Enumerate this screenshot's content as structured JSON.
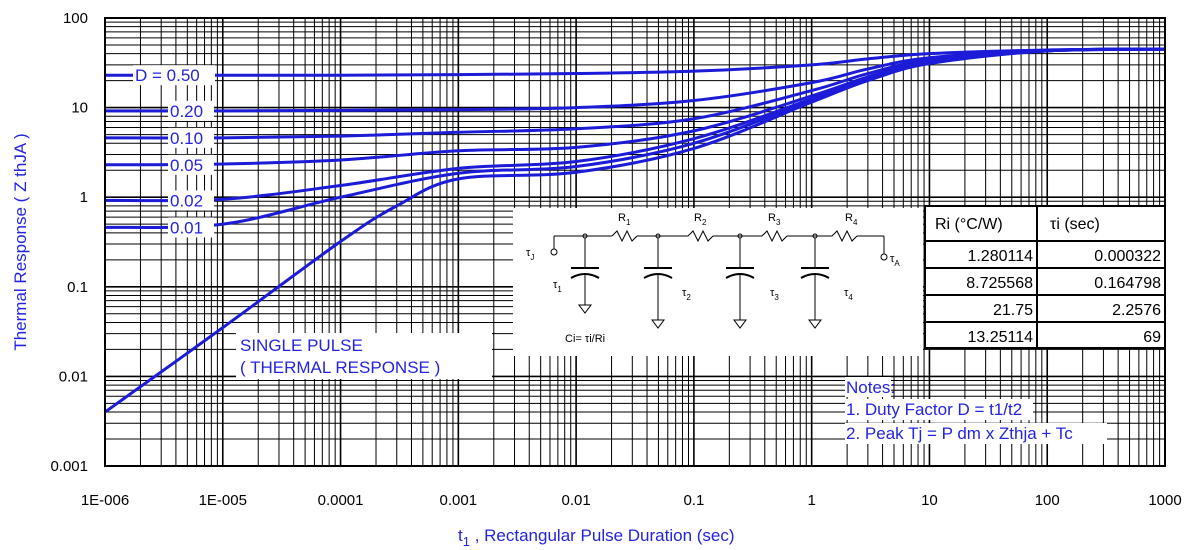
{
  "chart_data": {
    "type": "line",
    "xlabel": "t",
    "xlabel_sub": "1",
    "xlabel_rest": " , Rectangular Pulse Duration (sec)",
    "ylabel": "Thermal Response ( Z",
    "ylabel_sub": " thJA",
    "ylabel_end": " )",
    "x_scale": "log",
    "y_scale": "log",
    "xlim": [
      1e-06,
      1000
    ],
    "ylim": [
      0.001,
      100
    ],
    "x_ticks": [
      1e-06,
      1e-05,
      0.0001,
      0.001,
      0.01,
      0.1,
      1,
      10,
      100,
      1000
    ],
    "x_tick_labels": [
      "1E-006",
      "1E-005",
      "0.0001",
      "0.001",
      "0.01",
      "0.1",
      "1",
      "10",
      "100",
      "1000"
    ],
    "y_ticks": [
      0.001,
      0.01,
      0.1,
      1,
      10,
      100
    ],
    "y_tick_labels": [
      "0.001",
      "0.01",
      "0.1",
      "1",
      "10",
      "100"
    ],
    "grid": true,
    "series": [
      {
        "name": "D = 0.50",
        "points": [
          [
            1e-06,
            23
          ],
          [
            1e-05,
            23
          ],
          [
            0.0001,
            23
          ],
          [
            0.001,
            23.3
          ],
          [
            0.01,
            24
          ],
          [
            0.1,
            25.5
          ],
          [
            1,
            30
          ],
          [
            3,
            35
          ],
          [
            10,
            40
          ],
          [
            100,
            44
          ],
          [
            1000,
            45
          ]
        ]
      },
      {
        "name": "0.20",
        "points": [
          [
            1e-06,
            9.2
          ],
          [
            1e-05,
            9.2
          ],
          [
            0.0001,
            9.3
          ],
          [
            0.001,
            9.5
          ],
          [
            0.01,
            10
          ],
          [
            0.1,
            12
          ],
          [
            1,
            19
          ],
          [
            3,
            27
          ],
          [
            10,
            36
          ],
          [
            100,
            43.5
          ],
          [
            1000,
            45
          ]
        ]
      },
      {
        "name": "0.10",
        "points": [
          [
            1e-06,
            4.6
          ],
          [
            1e-05,
            4.6
          ],
          [
            0.0001,
            4.8
          ],
          [
            0.001,
            5.3
          ],
          [
            0.01,
            5.8
          ],
          [
            0.1,
            7.5
          ],
          [
            1,
            15.5
          ],
          [
            3,
            24
          ],
          [
            10,
            34
          ],
          [
            100,
            43
          ],
          [
            1000,
            45
          ]
        ]
      },
      {
        "name": "0.05",
        "points": [
          [
            1e-06,
            2.3
          ],
          [
            1e-05,
            2.35
          ],
          [
            0.0001,
            2.6
          ],
          [
            0.001,
            3.3
          ],
          [
            0.01,
            3.6
          ],
          [
            0.1,
            5.5
          ],
          [
            1,
            13.5
          ],
          [
            3,
            22
          ],
          [
            10,
            33
          ],
          [
            100,
            43
          ],
          [
            1000,
            45
          ]
        ]
      },
      {
        "name": "0.02",
        "points": [
          [
            1e-06,
            0.92
          ],
          [
            1e-05,
            0.95
          ],
          [
            0.0001,
            1.35
          ],
          [
            0.001,
            2.1
          ],
          [
            0.01,
            2.5
          ],
          [
            0.1,
            4.5
          ],
          [
            1,
            12.5
          ],
          [
            3,
            21
          ],
          [
            10,
            32
          ],
          [
            100,
            43
          ],
          [
            1000,
            45
          ]
        ]
      },
      {
        "name": "0.01",
        "points": [
          [
            1e-06,
            0.46
          ],
          [
            1e-05,
            0.5
          ],
          [
            0.0001,
            1.0
          ],
          [
            0.001,
            1.85
          ],
          [
            0.01,
            2.2
          ],
          [
            0.1,
            4.0
          ],
          [
            1,
            12
          ],
          [
            3,
            20.5
          ],
          [
            10,
            32
          ],
          [
            100,
            43
          ],
          [
            1000,
            45
          ]
        ]
      },
      {
        "name": "SINGLE PULSE",
        "points": [
          [
            1e-06,
            0.004
          ],
          [
            1e-05,
            0.035
          ],
          [
            0.0001,
            0.32
          ],
          [
            0.0003,
            0.8
          ],
          [
            0.001,
            1.6
          ],
          [
            0.01,
            1.9
          ],
          [
            0.1,
            3.5
          ],
          [
            1,
            11.5
          ],
          [
            3,
            20
          ],
          [
            10,
            31
          ],
          [
            100,
            43
          ],
          [
            1000,
            45
          ]
        ]
      }
    ],
    "annotations": {
      "single_pulse_line1": "SINGLE PULSE",
      "single_pulse_line2": "( THERMAL RESPONSE )",
      "notes_title": "Notes:",
      "note1": "1. Duty Factor D = t1/t2",
      "note2": "2. Peak Tj = P dm x Zthja + Tc"
    },
    "table": {
      "headers": [
        "Ri (°C/W)",
        "τi (sec)"
      ],
      "rows": [
        [
          "1.280114",
          "0.000322"
        ],
        [
          "8.725568",
          "0.164798"
        ],
        [
          "21.75",
          "2.2576"
        ],
        [
          "13.25114",
          "69"
        ]
      ]
    },
    "circuit": {
      "resistors": [
        "R",
        "R",
        "R",
        "R"
      ],
      "resistor_subs": [
        "1",
        "2",
        "3",
        "4"
      ],
      "taus": [
        "τ",
        "τ",
        "τ",
        "τ"
      ],
      "tau_subs": [
        "1",
        "2",
        "3",
        "4"
      ],
      "tau_j": "τ",
      "tau_j_sub": "J",
      "tau_a": "τ",
      "tau_a_sub": "A",
      "ci_formula": "Ci= τi/Ri"
    },
    "colors": {
      "curve": "#1c1cd8",
      "text_accent": "#2424e0",
      "grid": "#000000"
    }
  }
}
